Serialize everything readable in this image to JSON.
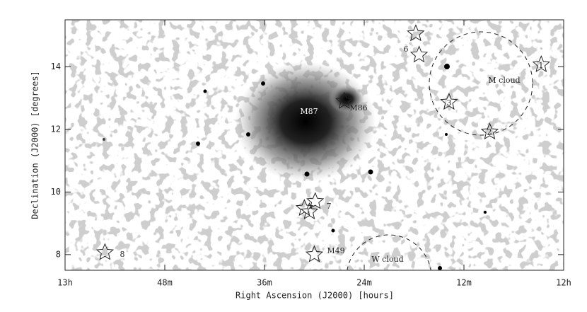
{
  "chart_data": {
    "type": "scatter",
    "x_label": "Right Ascension (J2000)  [hours]",
    "y_label": "Declination (J2000) [degrees]",
    "xlim": [
      60,
      0
    ],
    "ylim": [
      7.5,
      15.5
    ],
    "xticks": [
      {
        "value": 60,
        "label": "13h"
      },
      {
        "value": 48,
        "label": "48m"
      },
      {
        "value": 36,
        "label": "36m"
      },
      {
        "value": 24,
        "label": "24m"
      },
      {
        "value": 12,
        "label": "12m"
      },
      {
        "value": 0,
        "label": "12h"
      }
    ],
    "yticks": [
      8,
      10,
      12,
      14
    ],
    "x": [
      2.7,
      8.9,
      13.8,
      17.8,
      17.4,
      31.2,
      29.9,
      30.6,
      55.2,
      30.0,
      26.4
    ],
    "values": [
      14.07,
      11.92,
      12.87,
      15.06,
      14.38,
      9.48,
      9.7,
      9.37,
      8.07,
      8.0,
      12.9
    ],
    "annotations": [
      "M87",
      "M86",
      "M49",
      "M cloud",
      "W cloud",
      "1",
      "2",
      "3",
      "6",
      "7",
      "8"
    ]
  }
}
